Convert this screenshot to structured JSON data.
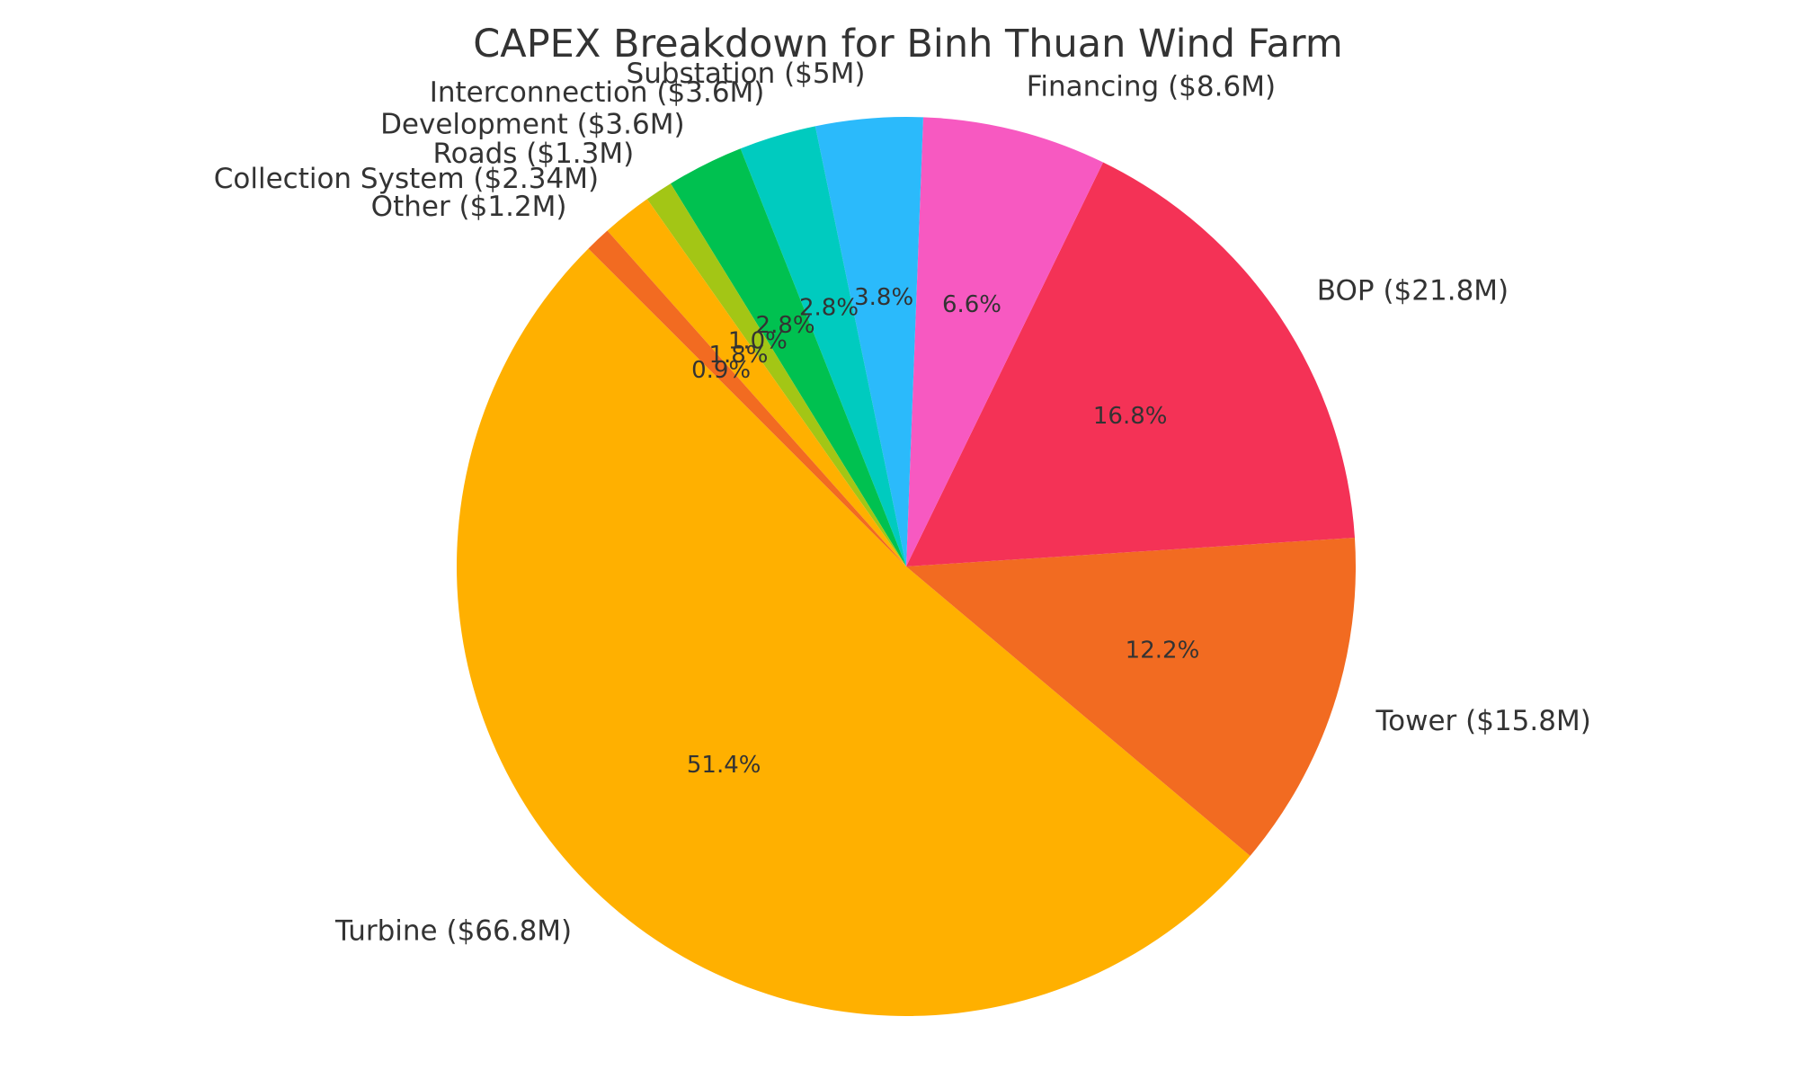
{
  "chart_data": {
    "type": "pie",
    "title": "CAPEX Breakdown for Binh Thuan Wind Farm",
    "start_angle_deg": 135,
    "direction": "counterclockwise",
    "slices": [
      {
        "label": "Turbine ($66.8M)",
        "value": 66.8,
        "percent_label": "51.4%",
        "color": "#FFB000"
      },
      {
        "label": "Tower ($15.8M)",
        "value": 15.8,
        "percent_label": "12.2%",
        "color": "#F26B21"
      },
      {
        "label": "BOP ($21.8M)",
        "value": 21.8,
        "percent_label": "16.8%",
        "color": "#F43256"
      },
      {
        "label": "Financing ($8.6M)",
        "value": 8.6,
        "percent_label": "6.6%",
        "color": "#F759C1"
      },
      {
        "label": "Substation ($5M)",
        "value": 5,
        "percent_label": "3.8%",
        "color": "#2BBAFB"
      },
      {
        "label": "Interconnection ($3.6M)",
        "value": 3.6,
        "percent_label": "2.8%",
        "color": "#00CBBF"
      },
      {
        "label": "Development ($3.6M)",
        "value": 3.6,
        "percent_label": "2.8%",
        "color": "#00C150"
      },
      {
        "label": "Roads ($1.3M)",
        "value": 1.3,
        "percent_label": "1.0%",
        "color": "#A3C615"
      },
      {
        "label": "Collection System ($2.34M)",
        "value": 2.34,
        "percent_label": "1.8%",
        "color": "#FFB000"
      },
      {
        "label": "Other ($1.2M)",
        "value": 1.2,
        "percent_label": "0.9%",
        "color": "#F26B21"
      }
    ]
  }
}
